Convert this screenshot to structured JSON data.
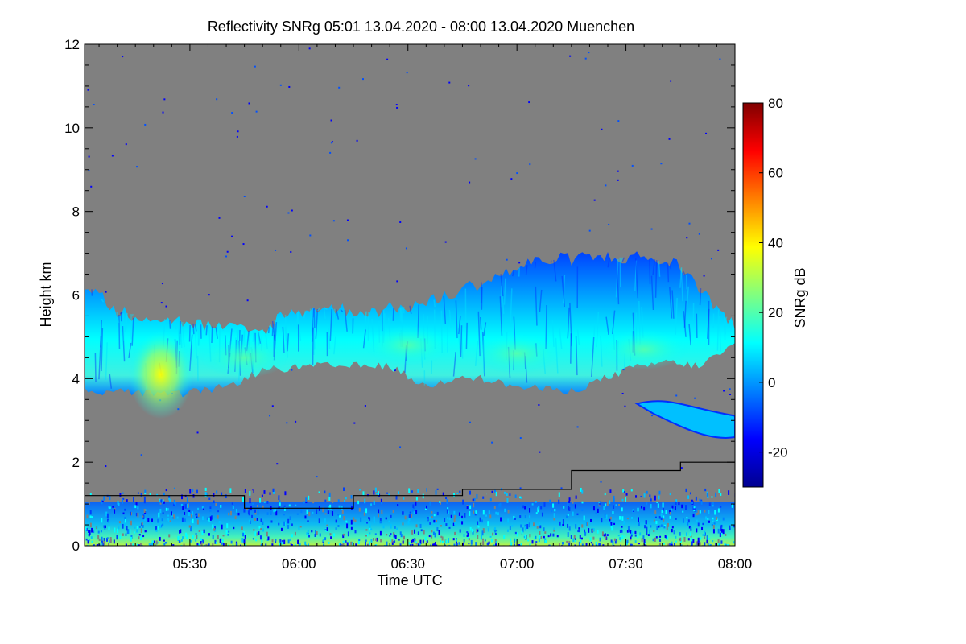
{
  "chart_data": {
    "type": "heatmap",
    "title": "Reflectivity SNRg   05:01 13.04.2020 - 08:00 13.04.2020 Muenchen",
    "xlabel": "Time UTC",
    "ylabel": "Height km",
    "x_unit": "minutes since 05:00 UTC",
    "xlim": [
      1,
      180
    ],
    "ylim": [
      0,
      12
    ],
    "x_ticks": [
      {
        "value": 30,
        "label": "05:30"
      },
      {
        "value": 60,
        "label": "06:00"
      },
      {
        "value": 90,
        "label": "06:30"
      },
      {
        "value": 120,
        "label": "07:00"
      },
      {
        "value": 150,
        "label": "07:30"
      },
      {
        "value": 180,
        "label": "08:00"
      }
    ],
    "y_ticks": [
      {
        "value": 0,
        "label": "0"
      },
      {
        "value": 2,
        "label": "2"
      },
      {
        "value": 4,
        "label": "4"
      },
      {
        "value": 6,
        "label": "6"
      },
      {
        "value": 8,
        "label": "8"
      },
      {
        "value": 10,
        "label": "10"
      },
      {
        "value": 12,
        "label": "12"
      }
    ],
    "colorbar": {
      "label": "SNRg dB",
      "range": [
        -30,
        80
      ],
      "ticks": [
        {
          "value": -20,
          "label": "-20"
        },
        {
          "value": 0,
          "label": "0"
        },
        {
          "value": 20,
          "label": "20"
        },
        {
          "value": 40,
          "label": "40"
        },
        {
          "value": 60,
          "label": "60"
        },
        {
          "value": 80,
          "label": "80"
        }
      ],
      "colormap": [
        "#00008f",
        "#0000ff",
        "#0080ff",
        "#00ffff",
        "#80ff80",
        "#ffff00",
        "#ff8000",
        "#ff0000",
        "#800000"
      ]
    },
    "no_signal_color": "#808080",
    "cloud_layer": {
      "description": "main cloud layer",
      "base_km": [
        [
          1,
          3.7
        ],
        [
          10,
          3.7
        ],
        [
          25,
          3.6
        ],
        [
          40,
          3.8
        ],
        [
          50,
          4.2
        ],
        [
          65,
          4.3
        ],
        [
          85,
          4.3
        ],
        [
          95,
          3.8
        ],
        [
          105,
          4.1
        ],
        [
          120,
          3.8
        ],
        [
          135,
          3.7
        ],
        [
          150,
          4.2
        ],
        [
          160,
          4.4
        ],
        [
          170,
          4.3
        ],
        [
          180,
          4.8
        ]
      ],
      "top_km": [
        [
          1,
          6.3
        ],
        [
          10,
          5.6
        ],
        [
          25,
          5.4
        ],
        [
          40,
          5.2
        ],
        [
          50,
          5.1
        ],
        [
          55,
          5.5
        ],
        [
          65,
          5.7
        ],
        [
          80,
          5.6
        ],
        [
          95,
          5.8
        ],
        [
          110,
          6.3
        ],
        [
          125,
          6.8
        ],
        [
          140,
          6.9
        ],
        [
          155,
          6.9
        ],
        [
          165,
          6.7
        ],
        [
          172,
          6.0
        ],
        [
          180,
          5.2
        ]
      ],
      "peak_snr_dB": [
        [
          22,
          4.1,
          35
        ],
        [
          45,
          4.5,
          18
        ],
        [
          90,
          4.8,
          20
        ],
        [
          120,
          4.6,
          15
        ],
        [
          155,
          4.7,
          12
        ]
      ]
    },
    "lower_cloud": {
      "start_min": 153,
      "end_min": 180,
      "base_km": 2.6,
      "top_km": 3.4
    },
    "step_line": {
      "description": "black step line",
      "color": "#000000",
      "points": [
        [
          1,
          1.2
        ],
        [
          45,
          1.2
        ],
        [
          45,
          0.9
        ],
        [
          75,
          0.9
        ],
        [
          75,
          1.2
        ],
        [
          105,
          1.2
        ],
        [
          105,
          1.35
        ],
        [
          135,
          1.35
        ],
        [
          135,
          1.8
        ],
        [
          165,
          1.8
        ],
        [
          165,
          2.0
        ],
        [
          180,
          2.0
        ]
      ]
    },
    "near_surface_clutter_top_km": 1.4
  }
}
